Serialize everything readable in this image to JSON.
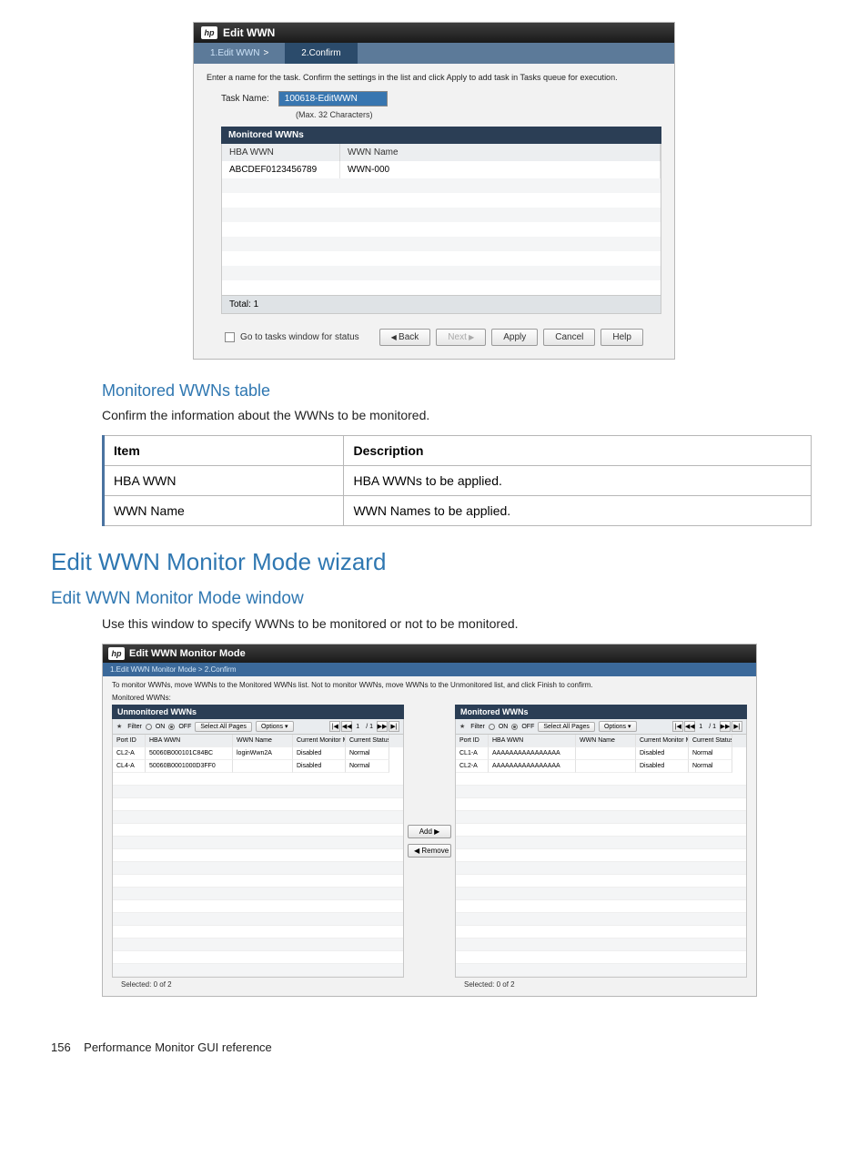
{
  "shot1": {
    "title": "Edit WWN",
    "tab1": "1.Edit WWN",
    "tab2": "2.Confirm",
    "instruction": "Enter a name for the task. Confirm the settings in the list and click Apply to add task in Tasks queue for execution.",
    "task_label": "Task Name:",
    "task_value": "100618-EditWWN",
    "task_hint": "(Max. 32 Characters)",
    "table_header": "Monitored WWNs",
    "col1": "HBA WWN",
    "col2": "WWN Name",
    "row1_c1": "ABCDEF0123456789",
    "row1_c2": "WWN-000",
    "total": "Total:  1",
    "chk_label": "Go to tasks window for status",
    "btn_back": "Back",
    "btn_next": "Next",
    "btn_apply": "Apply",
    "btn_cancel": "Cancel",
    "btn_help": "Help"
  },
  "sect1": {
    "heading": "Monitored WWNs table",
    "body": "Confirm the information about the WWNs to be monitored.",
    "th1": "Item",
    "th2": "Description",
    "r1c1": "HBA WWN",
    "r1c2": "HBA WWNs to be applied.",
    "r2c1": "WWN Name",
    "r2c2": "WWN Names to be applied."
  },
  "sect2": {
    "h2": "Edit WWN Monitor Mode wizard",
    "h3": "Edit WWN Monitor Mode window",
    "body": "Use this window to specify WWNs to be monitored or not to be monitored."
  },
  "shot2": {
    "title": "Edit WWN Monitor Mode",
    "tabs": "1.Edit WWN Monitor Mode  >  2.Confirm",
    "instruction": "To monitor WWNs, move WWNs to the Monitored WWNs list. Not to monitor WWNs, move WWNs to the Unmonitored list, and click Finish to confirm.",
    "mw_label": "Monitored WWNs:",
    "left_header": "Unmonitored WWNs",
    "right_header": "Monitored WWNs",
    "filter_label": "Filter",
    "on": "ON",
    "off": "OFF",
    "select_all": "Select All Pages",
    "options": "Options ▾",
    "page_of": "/ 1",
    "page_cur": "1",
    "col_port": "Port ID",
    "col_hba": "HBA WWN",
    "col_wwnname": "WWN Name",
    "col_mode": "Current Monitor Mode",
    "col_status": "Current Status",
    "left_rows": [
      {
        "port": "CL2-A",
        "hba": "50060B000101C84BC",
        "name": "loginWwn2A",
        "mode": "Disabled",
        "status": "Normal"
      },
      {
        "port": "CL4-A",
        "hba": "50060B0001000D3FF0",
        "name": "",
        "mode": "Disabled",
        "status": "Normal"
      }
    ],
    "right_rows": [
      {
        "port": "CL1-A",
        "hba": "AAAAAAAAAAAAAAAA",
        "name": "",
        "mode": "Disabled",
        "status": "Normal"
      },
      {
        "port": "CL2-A",
        "hba": "AAAAAAAAAAAAAAAA",
        "name": "",
        "mode": "Disabled",
        "status": "Normal"
      }
    ],
    "add": "Add ▶",
    "remove": "◀ Remove",
    "selected_left": "Selected:  0    of  2",
    "selected_right": "Selected:  0    of  2"
  },
  "footer": {
    "page": "156",
    "title": "Performance Monitor GUI reference"
  }
}
